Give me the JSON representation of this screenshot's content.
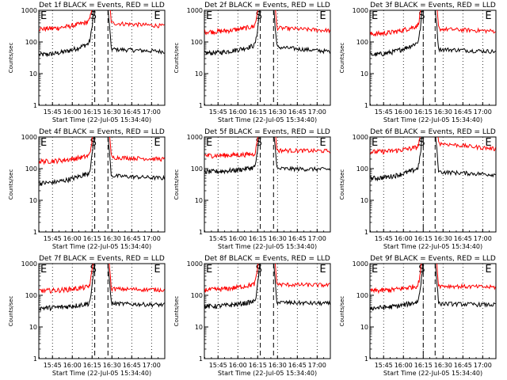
{
  "figure": {
    "x_tick_labels": [
      "15:45",
      "16:00",
      "16:15",
      "16:30",
      "16:45",
      "17:00"
    ],
    "xlabel": "Start Time (22-Jul-05 15:34:40)",
    "ylabel": "Counts/sec",
    "y_tick_labels": [
      "1",
      "10",
      "100",
      "1000"
    ],
    "markers": {
      "start": "S",
      "end": "E"
    },
    "colors": {
      "events": "#000000",
      "lld": "#ff0000",
      "axes": "#000000",
      "background": "#ffffff"
    }
  },
  "chart_data": [
    {
      "type": "line",
      "title": "Det 1f BLACK = Events, RED = LLD",
      "xlabel": "Start Time (22-Jul-05 15:34:40)",
      "ylabel": "Counts/sec",
      "yscale": "log",
      "ylim": [
        1,
        1000
      ],
      "xlim": [
        "15:34:40",
        "17:10"
      ],
      "x_ticks": [
        "15:45",
        "16:00",
        "16:15",
        "16:30",
        "16:45",
        "17:00"
      ],
      "gap": [
        "16:17",
        "16:27"
      ],
      "s_marker": "16:17",
      "e_marker": "17:00",
      "series": [
        {
          "name": "Events",
          "color": "#000000",
          "pre_start": 40,
          "pre_end": 110,
          "post_level": 60,
          "post_end": 50
        },
        {
          "name": "LLD",
          "color": "#ff0000",
          "pre_start": 260,
          "pre_end": 500,
          "post_level": 400,
          "post_end": 320
        }
      ]
    },
    {
      "type": "line",
      "title": "Det 2f BLACK = Events, RED = LLD",
      "xlabel": "Start Time (22-Jul-05 15:34:40)",
      "ylabel": "Counts/sec",
      "yscale": "log",
      "ylim": [
        1,
        1000
      ],
      "xlim": [
        "15:34:40",
        "17:10"
      ],
      "x_ticks": [
        "15:45",
        "16:00",
        "16:15",
        "16:30",
        "16:45",
        "17:00"
      ],
      "gap": [
        "16:17",
        "16:27"
      ],
      "s_marker": "16:17",
      "e_marker": "17:00",
      "series": [
        {
          "name": "Events",
          "color": "#000000",
          "pre_start": 45,
          "pre_end": 90,
          "post_level": 70,
          "post_end": 50
        },
        {
          "name": "LLD",
          "color": "#ff0000",
          "pre_start": 210,
          "pre_end": 350,
          "post_level": 280,
          "post_end": 230
        }
      ]
    },
    {
      "type": "line",
      "title": "Det 3f BLACK = Events, RED = LLD",
      "xlabel": "Start Time (22-Jul-05 15:34:40)",
      "ylabel": "Counts/sec",
      "yscale": "log",
      "ylim": [
        1,
        1000
      ],
      "xlim": [
        "15:34:40",
        "17:10"
      ],
      "x_ticks": [
        "15:45",
        "16:00",
        "16:15",
        "16:30",
        "16:45",
        "17:00"
      ],
      "gap": [
        "16:15",
        "16:24"
      ],
      "s_marker": "16:15",
      "e_marker": "17:00",
      "series": [
        {
          "name": "Events",
          "color": "#000000",
          "pre_start": 40,
          "pre_end": 120,
          "post_level": 60,
          "post_end": 50
        },
        {
          "name": "LLD",
          "color": "#ff0000",
          "pre_start": 180,
          "pre_end": 380,
          "post_level": 260,
          "post_end": 220
        }
      ]
    },
    {
      "type": "line",
      "title": "Det 4f BLACK = Events, RED = LLD",
      "xlabel": "Start Time (22-Jul-05 15:34:40)",
      "ylabel": "Counts/sec",
      "yscale": "log",
      "ylim": [
        1,
        1000
      ],
      "xlim": [
        "15:34:40",
        "17:10"
      ],
      "x_ticks": [
        "15:45",
        "16:00",
        "16:15",
        "16:30",
        "16:45",
        "17:00"
      ],
      "gap": [
        "16:17",
        "16:27"
      ],
      "s_marker": "16:17",
      "e_marker": "17:00",
      "series": [
        {
          "name": "Events",
          "color": "#000000",
          "pre_start": 35,
          "pre_end": 90,
          "post_level": 60,
          "post_end": 50
        },
        {
          "name": "LLD",
          "color": "#ff0000",
          "pre_start": 170,
          "pre_end": 280,
          "post_level": 230,
          "post_end": 200
        }
      ]
    },
    {
      "type": "line",
      "title": "Det 5f BLACK = Events, RED = LLD",
      "xlabel": "Start Time (22-Jul-05 15:34:40)",
      "ylabel": "Counts/sec",
      "yscale": "log",
      "ylim": [
        1,
        1000
      ],
      "xlim": [
        "15:34:40",
        "17:10"
      ],
      "x_ticks": [
        "15:45",
        "16:00",
        "16:15",
        "16:30",
        "16:45",
        "17:00"
      ],
      "gap": [
        "16:17",
        "16:27"
      ],
      "s_marker": "16:17",
      "e_marker": "17:00",
      "series": [
        {
          "name": "Events",
          "color": "#000000",
          "pre_start": 80,
          "pre_end": 120,
          "post_level": 100,
          "post_end": 95
        },
        {
          "name": "LLD",
          "color": "#ff0000",
          "pre_start": 260,
          "pre_end": 300,
          "post_level": 380,
          "post_end": 360
        }
      ]
    },
    {
      "type": "line",
      "title": "Det 6f BLACK = Events, RED = LLD",
      "xlabel": "Start Time (22-Jul-05 15:34:40)",
      "ylabel": "Counts/sec",
      "yscale": "log",
      "ylim": [
        1,
        1000
      ],
      "xlim": [
        "15:34:40",
        "17:10"
      ],
      "x_ticks": [
        "15:45",
        "16:00",
        "16:15",
        "16:30",
        "16:45",
        "17:00"
      ],
      "gap": [
        "16:15",
        "16:24"
      ],
      "s_marker": "16:15",
      "e_marker": "17:00",
      "series": [
        {
          "name": "Events",
          "color": "#000000",
          "pre_start": 50,
          "pre_end": 120,
          "post_level": 80,
          "post_end": 65
        },
        {
          "name": "LLD",
          "color": "#ff0000",
          "pre_start": 340,
          "pre_end": 520,
          "post_level": 650,
          "post_end": 420
        }
      ]
    },
    {
      "type": "line",
      "title": "Det 7f BLACK = Events, RED = LLD",
      "xlabel": "Start Time (22-Jul-05 15:34:40)",
      "ylabel": "Counts/sec",
      "yscale": "log",
      "ylim": [
        1,
        1000
      ],
      "xlim": [
        "15:34:40",
        "17:10"
      ],
      "x_ticks": [
        "15:45",
        "16:00",
        "16:15",
        "16:30",
        "16:45",
        "17:00"
      ],
      "gap": [
        "16:17",
        "16:27"
      ],
      "s_marker": "16:17",
      "e_marker": "17:00",
      "series": [
        {
          "name": "Events",
          "color": "#000000",
          "pre_start": 40,
          "pre_end": 60,
          "post_level": 55,
          "post_end": 50
        },
        {
          "name": "LLD",
          "color": "#ff0000",
          "pre_start": 140,
          "pre_end": 200,
          "post_level": 160,
          "post_end": 150
        }
      ]
    },
    {
      "type": "line",
      "title": "Det 8f BLACK = Events, RED = LLD",
      "xlabel": "Start Time (22-Jul-05 15:34:40)",
      "ylabel": "Counts/sec",
      "yscale": "log",
      "ylim": [
        1,
        1000
      ],
      "xlim": [
        "15:34:40",
        "17:10"
      ],
      "x_ticks": [
        "15:45",
        "16:00",
        "16:15",
        "16:30",
        "16:45",
        "17:00"
      ],
      "gap": [
        "16:17",
        "16:27"
      ],
      "s_marker": "16:17",
      "e_marker": "17:00",
      "series": [
        {
          "name": "Events",
          "color": "#000000",
          "pre_start": 45,
          "pre_end": 70,
          "post_level": 60,
          "post_end": 55
        },
        {
          "name": "LLD",
          "color": "#ff0000",
          "pre_start": 150,
          "pre_end": 250,
          "post_level": 220,
          "post_end": 210
        }
      ]
    },
    {
      "type": "line",
      "title": "Det 9f BLACK = Events, RED = LLD",
      "xlabel": "Start Time (22-Jul-05 15:34:40)",
      "ylabel": "Counts/sec",
      "yscale": "log",
      "ylim": [
        1,
        1000
      ],
      "xlim": [
        "15:34:40",
        "17:10"
      ],
      "x_ticks": [
        "15:45",
        "16:00",
        "16:15",
        "16:30",
        "16:45",
        "17:00"
      ],
      "gap": [
        "16:15",
        "16:24"
      ],
      "s_marker": "16:15",
      "e_marker": "17:00",
      "series": [
        {
          "name": "Events",
          "color": "#000000",
          "pre_start": 40,
          "pre_end": 70,
          "post_level": 55,
          "post_end": 50
        },
        {
          "name": "LLD",
          "color": "#ff0000",
          "pre_start": 140,
          "pre_end": 220,
          "post_level": 200,
          "post_end": 180
        }
      ]
    }
  ]
}
